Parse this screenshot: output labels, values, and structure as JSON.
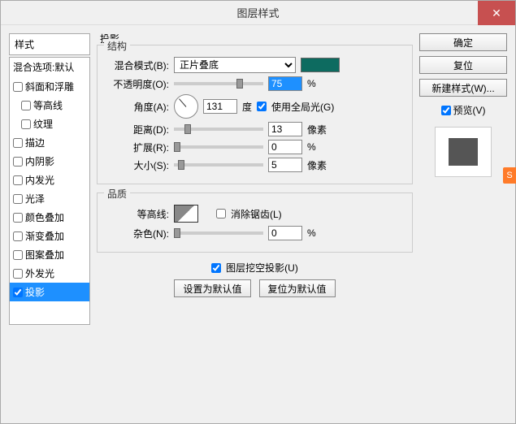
{
  "title": "图层样式",
  "sidebar_header": "样式",
  "sidebar_top": "混合选项:默认",
  "sidebar_items": [
    {
      "label": "斜面和浮雕",
      "checked": false,
      "indent": 0
    },
    {
      "label": "等高线",
      "checked": false,
      "indent": 1
    },
    {
      "label": "纹理",
      "checked": false,
      "indent": 1
    },
    {
      "label": "描边",
      "checked": false,
      "indent": 0
    },
    {
      "label": "内阴影",
      "checked": false,
      "indent": 0
    },
    {
      "label": "内发光",
      "checked": false,
      "indent": 0
    },
    {
      "label": "光泽",
      "checked": false,
      "indent": 0
    },
    {
      "label": "颜色叠加",
      "checked": false,
      "indent": 0
    },
    {
      "label": "渐变叠加",
      "checked": false,
      "indent": 0
    },
    {
      "label": "图案叠加",
      "checked": false,
      "indent": 0
    },
    {
      "label": "外发光",
      "checked": false,
      "indent": 0
    },
    {
      "label": "投影",
      "checked": true,
      "indent": 0,
      "selected": true
    }
  ],
  "panel_title": "投影",
  "group_structure": "结构",
  "group_quality": "品质",
  "labels": {
    "blend_mode": "混合模式(B):",
    "opacity": "不透明度(O):",
    "angle": "角度(A):",
    "degrees": "度",
    "use_global": "使用全局光(G)",
    "distance": "距离(D):",
    "spread": "扩展(R):",
    "size": "大小(S):",
    "contour": "等高线:",
    "antialias": "消除锯齿(L)",
    "noise": "杂色(N):",
    "knockout": "图层挖空投影(U)",
    "set_default": "设置为默认值",
    "reset_default": "复位为默认值"
  },
  "values": {
    "blend_mode": "正片叠底",
    "shadow_color": "#0d6b60",
    "opacity": "75",
    "opacity_pct": 75,
    "angle": "131",
    "use_global": true,
    "distance": "13",
    "distance_pct": 13,
    "spread": "0",
    "spread_pct": 0,
    "size": "5",
    "size_pct": 5,
    "antialias": false,
    "noise": "0",
    "noise_pct": 0,
    "knockout": true
  },
  "units": {
    "percent": "%",
    "px": "像素"
  },
  "buttons": {
    "ok": "确定",
    "cancel": "复位",
    "new_style": "新建样式(W)...",
    "preview": "预览(V)"
  },
  "preview_checked": true
}
